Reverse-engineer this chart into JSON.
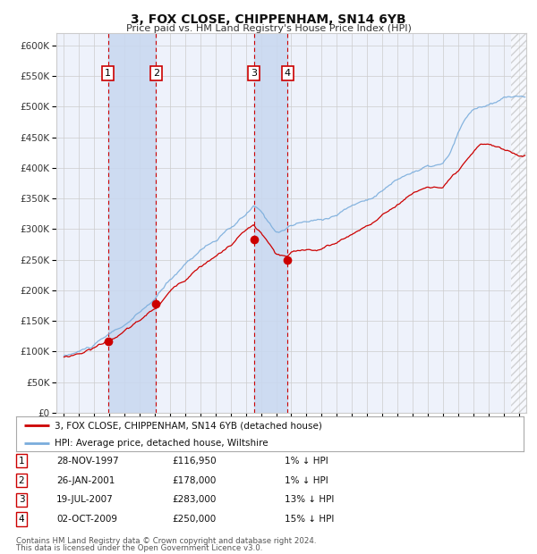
{
  "title": "3, FOX CLOSE, CHIPPENHAM, SN14 6YB",
  "subtitle": "Price paid vs. HM Land Registry's House Price Index (HPI)",
  "legend_line1": "3, FOX CLOSE, CHIPPENHAM, SN14 6YB (detached house)",
  "legend_line2": "HPI: Average price, detached house, Wiltshire",
  "footnote1": "Contains HM Land Registry data © Crown copyright and database right 2024.",
  "footnote2": "This data is licensed under the Open Government Licence v3.0.",
  "hpi_color": "#7aaddc",
  "price_color": "#cc0000",
  "background_color": "#ffffff",
  "plot_bg_color": "#eef2fb",
  "grid_color": "#cccccc",
  "highlight_bg": "#c8d8f0",
  "sale_color": "#cc0000",
  "ylabel_color": "#333333",
  "x_start": 1994.5,
  "x_end": 2025.5,
  "y_min": 0,
  "y_max": 620000,
  "yticks": [
    0,
    50000,
    100000,
    150000,
    200000,
    250000,
    300000,
    350000,
    400000,
    450000,
    500000,
    550000,
    600000
  ],
  "ytick_labels": [
    "£0",
    "£50K",
    "£100K",
    "£150K",
    "£200K",
    "£250K",
    "£300K",
    "£350K",
    "£400K",
    "£450K",
    "£500K",
    "£550K",
    "£600K"
  ],
  "sale_events": [
    {
      "num": 1,
      "date_str": "28-NOV-1997",
      "price": 116950,
      "year": 1997.91,
      "pct": "1%",
      "dir": "↓"
    },
    {
      "num": 2,
      "date_str": "26-JAN-2001",
      "price": 178000,
      "year": 2001.07,
      "pct": "1%",
      "dir": "↓"
    },
    {
      "num": 3,
      "date_str": "19-JUL-2007",
      "price": 283000,
      "year": 2007.54,
      "pct": "13%",
      "dir": "↓"
    },
    {
      "num": 4,
      "date_str": "02-OCT-2009",
      "price": 250000,
      "year": 2009.75,
      "pct": "15%",
      "dir": "↓"
    }
  ],
  "highlight_ranges": [
    [
      1997.91,
      2001.07
    ],
    [
      2007.54,
      2009.75
    ]
  ],
  "hatch_range": [
    2024.5,
    2025.5
  ],
  "xtick_years": [
    1995,
    1996,
    1997,
    1998,
    1999,
    2000,
    2001,
    2002,
    2003,
    2004,
    2005,
    2006,
    2007,
    2008,
    2009,
    2010,
    2011,
    2012,
    2013,
    2014,
    2015,
    2016,
    2017,
    2018,
    2019,
    2020,
    2021,
    2022,
    2023,
    2024,
    2025
  ]
}
